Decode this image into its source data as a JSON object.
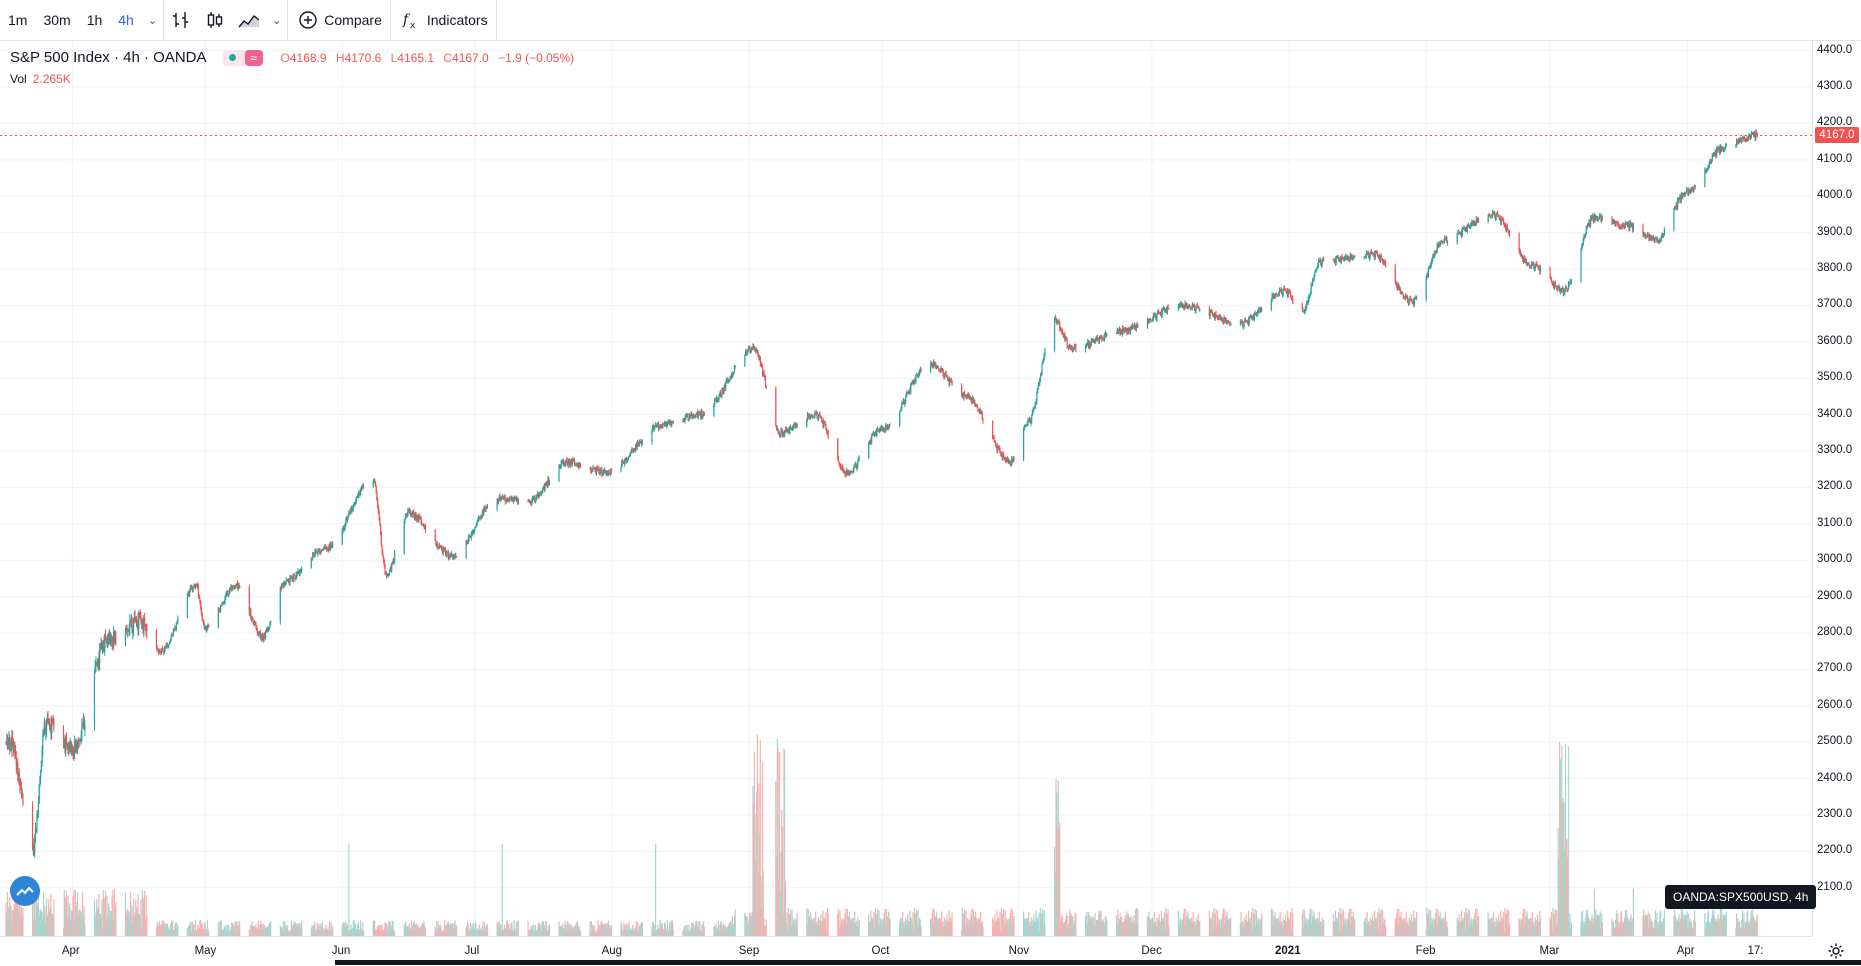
{
  "toolbar": {
    "intervals": [
      "1m",
      "30m",
      "1h",
      "4h"
    ],
    "active_interval": "4h",
    "compare_label": "Compare",
    "indicators_label": "Indicators",
    "icons": [
      "chevron-down-icon",
      "bar-style-icon",
      "candle-style-icon",
      "area-style-icon",
      "chevron-down-icon",
      "plus-circle-icon",
      "fx-icon"
    ]
  },
  "legend": {
    "title": "S&P 500 Index · 4h · OANDA",
    "ohlc_prefix_o": "O",
    "ohlc_o": "4168.9",
    "ohlc_prefix_h": "H",
    "ohlc_h": "4170.6",
    "ohlc_prefix_l": "L",
    "ohlc_l": "4165.1",
    "ohlc_prefix_c": "C",
    "ohlc_c": "4167.0",
    "change": "−1.9 (−0.05%)",
    "status_symbol": "≈",
    "vol_label": "Vol",
    "vol_value": "2.265K"
  },
  "last_price_tag": "4167.0",
  "symbol_tag": "OANDA:SPX500USD, 4h",
  "colors": {
    "up": "#26a69a",
    "down": "#ef5350",
    "up_volume": "#a5d6d0",
    "down_volume": "#f7b2b0",
    "grid": "#f0f3fa",
    "accent": "#2962ff"
  },
  "chart_data": {
    "type": "candlestick",
    "symbol": "OANDA:SPX500USD",
    "interval": "4h",
    "y_axis": {
      "ticks": [
        "2100.0",
        "2200.0",
        "2300.0",
        "2400.0",
        "2500.0",
        "2600.0",
        "2700.0",
        "2800.0",
        "2900.0",
        "3000.0",
        "3100.0",
        "3200.0",
        "3300.0",
        "3400.0",
        "3500.0",
        "3600.0",
        "3700.0",
        "3800.0",
        "3900.0",
        "4000.0",
        "4100.0",
        "4200.0",
        "4300.0",
        "4400.0"
      ],
      "range": [
        2050,
        4410
      ]
    },
    "x_axis": {
      "labels": [
        "Apr",
        "May",
        "Jun",
        "Jul",
        "Aug",
        "Sep",
        "Oct",
        "Nov",
        "Dec",
        "2021",
        "Feb",
        "Mar",
        "Apr",
        "17:"
      ],
      "range": [
        "2020-03-17",
        "2021-04-17"
      ]
    },
    "grid": true,
    "anchors": [
      {
        "date": "2020-03-18",
        "price": 2500
      },
      {
        "date": "2020-03-23",
        "price": 2200
      },
      {
        "date": "2020-03-26",
        "price": 2550
      },
      {
        "date": "2020-04-01",
        "price": 2480
      },
      {
        "date": "2020-04-09",
        "price": 2780
      },
      {
        "date": "2020-04-16",
        "price": 2830
      },
      {
        "date": "2020-04-21",
        "price": 2750
      },
      {
        "date": "2020-04-29",
        "price": 2930
      },
      {
        "date": "2020-05-01",
        "price": 2810
      },
      {
        "date": "2020-05-08",
        "price": 2930
      },
      {
        "date": "2020-05-14",
        "price": 2790
      },
      {
        "date": "2020-05-19",
        "price": 2940
      },
      {
        "date": "2020-05-28",
        "price": 3030
      },
      {
        "date": "2020-06-08",
        "price": 3220
      },
      {
        "date": "2020-06-11",
        "price": 2960
      },
      {
        "date": "2020-06-16",
        "price": 3130
      },
      {
        "date": "2020-06-26",
        "price": 3010
      },
      {
        "date": "2020-07-06",
        "price": 3170
      },
      {
        "date": "2020-07-13",
        "price": 3160
      },
      {
        "date": "2020-07-22",
        "price": 3270
      },
      {
        "date": "2020-07-31",
        "price": 3240
      },
      {
        "date": "2020-08-12",
        "price": 3370
      },
      {
        "date": "2020-08-21",
        "price": 3400
      },
      {
        "date": "2020-09-02",
        "price": 3580
      },
      {
        "date": "2020-09-08",
        "price": 3350
      },
      {
        "date": "2020-09-16",
        "price": 3400
      },
      {
        "date": "2020-09-23",
        "price": 3240
      },
      {
        "date": "2020-10-01",
        "price": 3360
      },
      {
        "date": "2020-10-12",
        "price": 3540
      },
      {
        "date": "2020-10-20",
        "price": 3450
      },
      {
        "date": "2020-10-30",
        "price": 3270
      },
      {
        "date": "2020-11-03",
        "price": 3380
      },
      {
        "date": "2020-11-09",
        "price": 3660
      },
      {
        "date": "2020-11-13",
        "price": 3580
      },
      {
        "date": "2020-11-24",
        "price": 3630
      },
      {
        "date": "2020-12-08",
        "price": 3700
      },
      {
        "date": "2020-12-21",
        "price": 3650
      },
      {
        "date": "2020-12-31",
        "price": 3740
      },
      {
        "date": "2021-01-04",
        "price": 3680
      },
      {
        "date": "2021-01-08",
        "price": 3820
      },
      {
        "date": "2021-01-20",
        "price": 3840
      },
      {
        "date": "2021-01-29",
        "price": 3710
      },
      {
        "date": "2021-02-05",
        "price": 3880
      },
      {
        "date": "2021-02-16",
        "price": 3950
      },
      {
        "date": "2021-02-25",
        "price": 3810
      },
      {
        "date": "2021-03-04",
        "price": 3740
      },
      {
        "date": "2021-03-11",
        "price": 3940
      },
      {
        "date": "2021-03-18",
        "price": 3920
      },
      {
        "date": "2021-03-25",
        "price": 3880
      },
      {
        "date": "2021-04-01",
        "price": 4010
      },
      {
        "date": "2021-04-09",
        "price": 4130
      },
      {
        "date": "2021-04-16",
        "price": 4167
      }
    ],
    "volume": {
      "typical": "low",
      "spikes": [
        {
          "date": "2020-09-03",
          "level": "very high"
        },
        {
          "date": "2020-09-08",
          "level": "very high"
        },
        {
          "date": "2020-11-09",
          "level": "high"
        },
        {
          "date": "2021-03-04",
          "level": "very high"
        }
      ]
    },
    "last": {
      "open": 4168.9,
      "high": 4170.6,
      "low": 4165.1,
      "close": 4167.0,
      "volume": "2.265K"
    }
  }
}
